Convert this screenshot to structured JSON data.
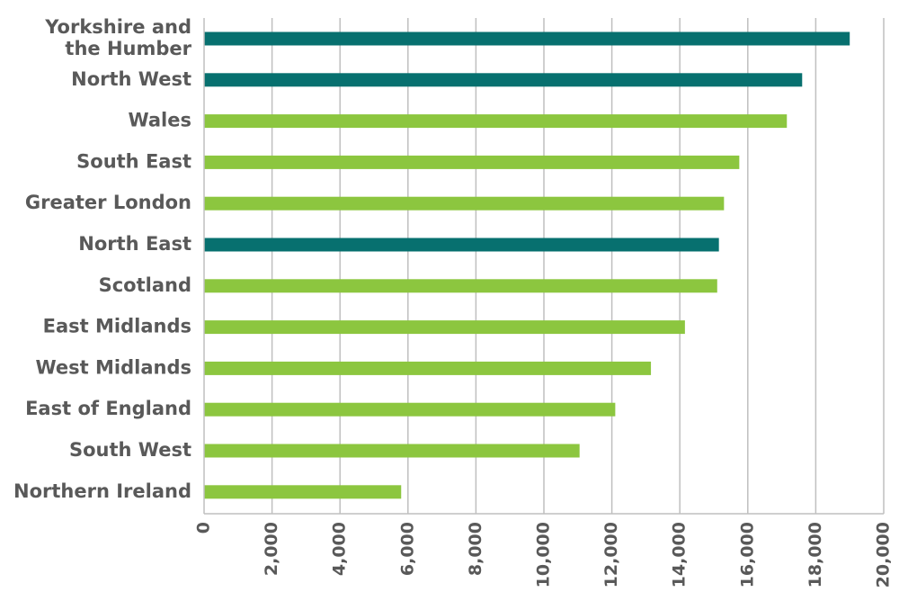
{
  "colors": {
    "highlight": "#07706F",
    "regular": "#8CC63F",
    "gridline": "#BFBFBF",
    "label_text": "#595959"
  },
  "chart_data": {
    "type": "bar",
    "orientation": "horizontal",
    "title": "",
    "xlabel": "",
    "ylabel": "",
    "xlim": [
      0,
      20000
    ],
    "grid": true,
    "legend": "none",
    "x_ticks": [
      0,
      2000,
      4000,
      6000,
      8000,
      10000,
      12000,
      14000,
      16000,
      18000,
      20000
    ],
    "x_tick_labels": [
      "0",
      "2,000",
      "4,000",
      "6,000",
      "8,000",
      "10,000",
      "12,000",
      "14,000",
      "16,000",
      "18,000",
      "20,000"
    ],
    "categories": [
      "Yorkshire and the Humber",
      "North West",
      "Wales",
      "South East",
      "Greater London",
      "North East",
      "Scotland",
      "East Midlands",
      "West Midlands",
      "East of England",
      "South West",
      "Northern Ireland"
    ],
    "category_label_lines": [
      [
        "Yorkshire and",
        "the Humber"
      ],
      [
        "North West"
      ],
      [
        "Wales"
      ],
      [
        "South East"
      ],
      [
        "Greater London"
      ],
      [
        "North East"
      ],
      [
        "Scotland"
      ],
      [
        "East Midlands"
      ],
      [
        "West Midlands"
      ],
      [
        "East of England"
      ],
      [
        "South West"
      ],
      [
        "Northern Ireland"
      ]
    ],
    "values": [
      19000,
      17600,
      17150,
      15750,
      15300,
      15150,
      15100,
      14150,
      13150,
      12100,
      11050,
      5800
    ],
    "highlighted": [
      true,
      true,
      false,
      false,
      false,
      true,
      false,
      false,
      false,
      false,
      false,
      false
    ]
  }
}
